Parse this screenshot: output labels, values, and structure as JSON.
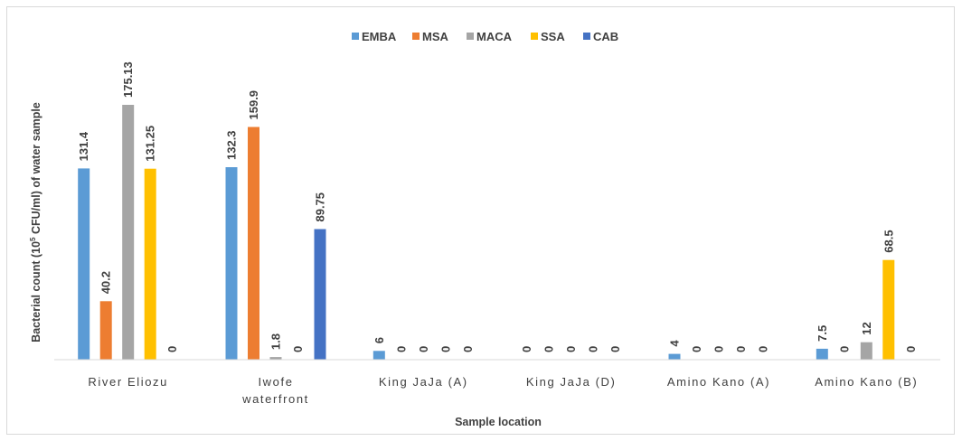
{
  "chart_data": {
    "type": "bar",
    "title": "",
    "xlabel": "Sample location",
    "ylabel": "Bacterial count (10",
    "ylabel_sup": "5",
    "ylabel_rest": " CFU/ml) of water sample",
    "ylim": [
      0,
      175.13
    ],
    "grid": false,
    "legend_position": "top",
    "categories": [
      [
        "River Eliozu"
      ],
      [
        "Iwofe",
        "waterfront"
      ],
      [
        "King JaJa (A)"
      ],
      [
        "King JaJa (D)"
      ],
      [
        "Amino Kano (A)"
      ],
      [
        "Amino Kano (B)"
      ]
    ],
    "series": [
      {
        "name": "EMBA",
        "color": "#5b9bd5",
        "values": [
          131.4,
          132.3,
          6,
          0,
          4,
          7.5
        ],
        "labels": [
          "131.4",
          "132.3",
          "6",
          "0",
          "4",
          "7.5"
        ]
      },
      {
        "name": "MSA",
        "color": "#ed7d31",
        "values": [
          40.2,
          159.9,
          0,
          0,
          0,
          0
        ],
        "labels": [
          "40.2",
          "159.9",
          "0",
          "0",
          "0",
          "0"
        ]
      },
      {
        "name": "MACA",
        "color": "#a5a5a5",
        "values": [
          175.13,
          1.8,
          0,
          0,
          0,
          12
        ],
        "labels": [
          "175.13",
          "1.8",
          "0",
          "0",
          "0",
          "12"
        ]
      },
      {
        "name": "SSA",
        "color": "#ffc000",
        "values": [
          131.25,
          0,
          0,
          0,
          0,
          68.5
        ],
        "labels": [
          "131.25",
          "0",
          "0",
          "0",
          "0",
          "68.5"
        ]
      },
      {
        "name": "CAB",
        "color": "#4472c4",
        "values": [
          0,
          89.75,
          0,
          0,
          0,
          0
        ],
        "labels": [
          "0",
          "89.75",
          "0",
          "0",
          "0",
          "0"
        ]
      }
    ]
  }
}
